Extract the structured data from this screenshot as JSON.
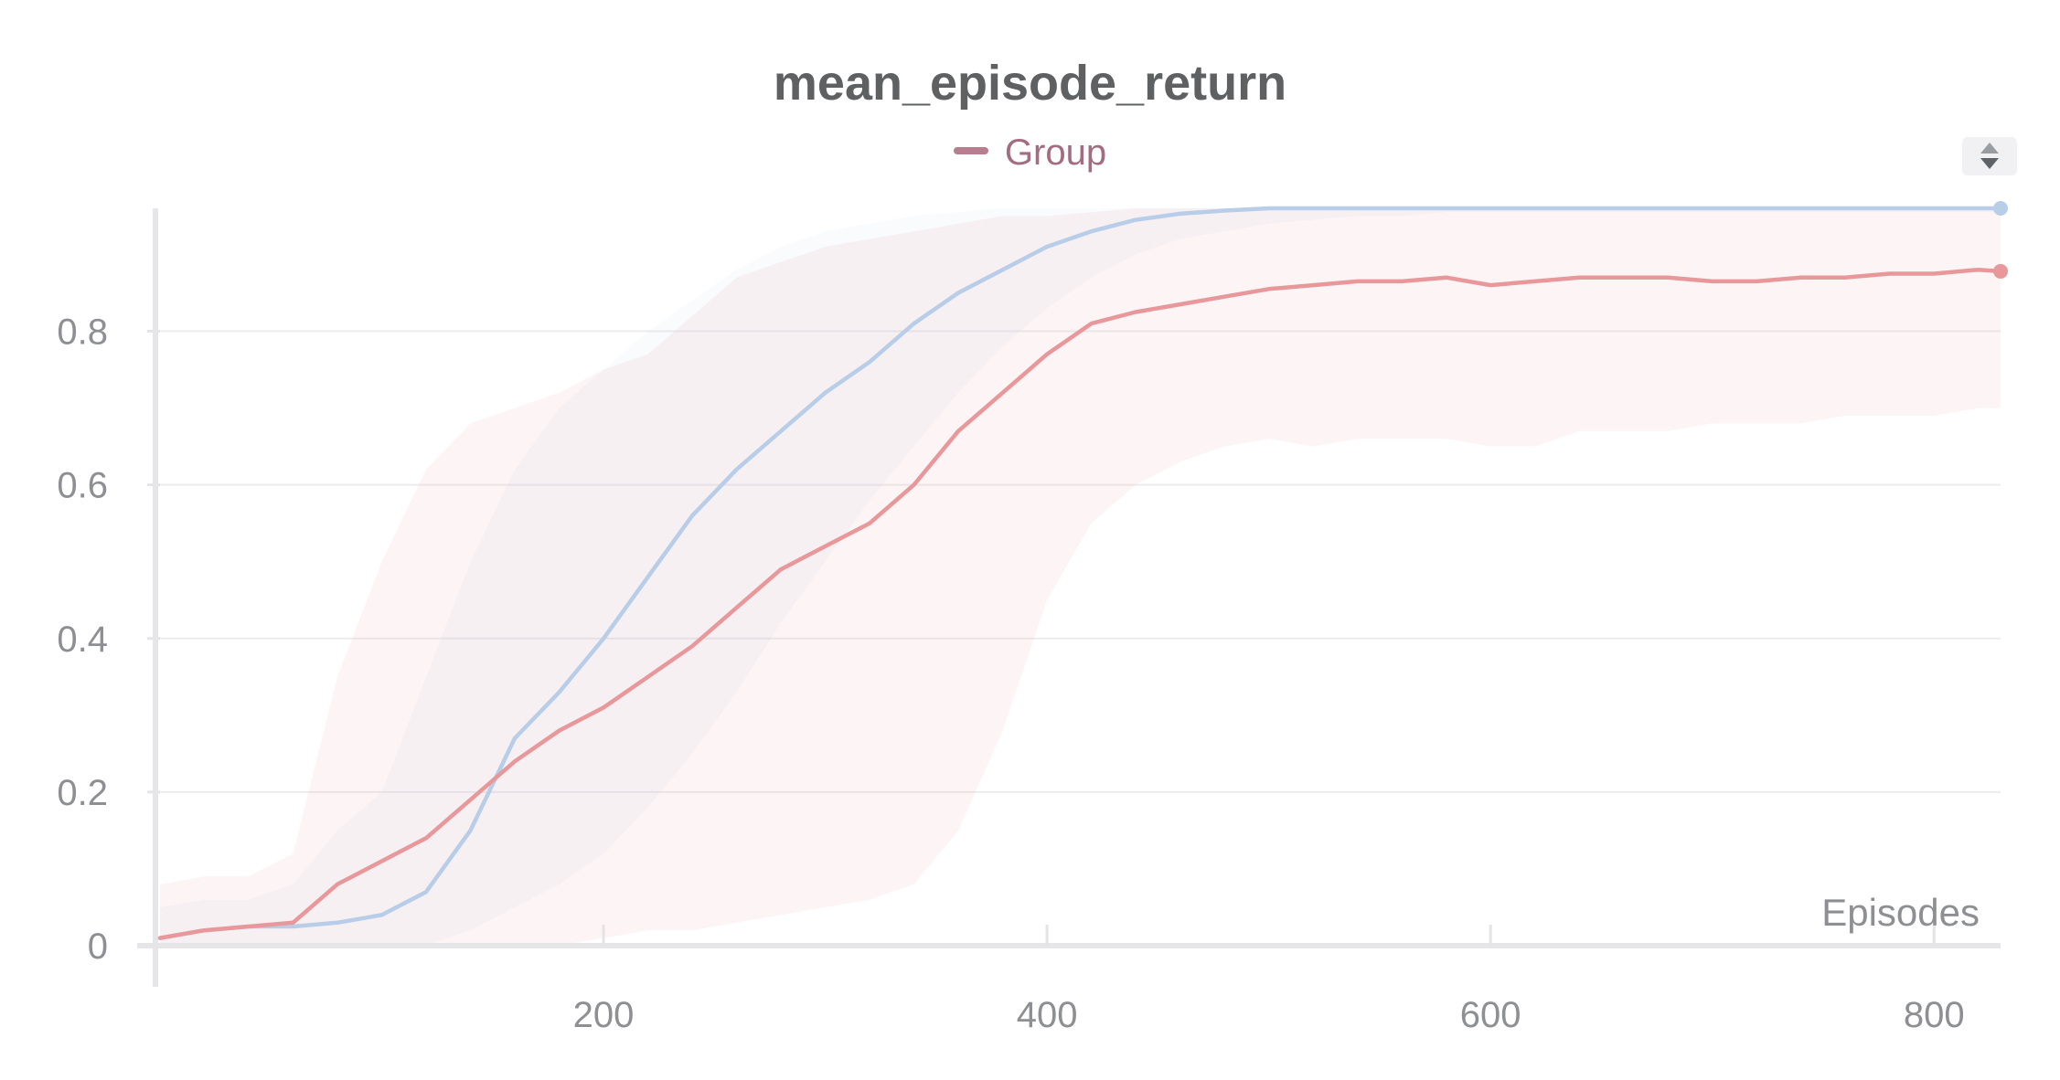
{
  "chart_data": {
    "type": "line",
    "title": "mean_episode_return",
    "xlabel": "Episodes",
    "ylabel": "",
    "xlim": [
      0,
      830
    ],
    "ylim": [
      0,
      0.96
    ],
    "x_ticks": [
      "200",
      "400",
      "600",
      "800"
    ],
    "x_tick_values": [
      200,
      400,
      600,
      800
    ],
    "y_ticks": [
      "0",
      "0.2",
      "0.4",
      "0.6",
      "0.8"
    ],
    "y_tick_values": [
      0,
      0.2,
      0.4,
      0.6,
      0.8
    ],
    "grid": true,
    "legend": {
      "position": "top-center",
      "entries": [
        "Group"
      ]
    },
    "series": [
      {
        "name": "Group",
        "color": "#e8989a",
        "x": [
          0,
          20,
          40,
          60,
          80,
          100,
          120,
          140,
          160,
          180,
          200,
          220,
          240,
          260,
          280,
          300,
          320,
          340,
          360,
          380,
          400,
          420,
          440,
          460,
          480,
          500,
          520,
          540,
          560,
          580,
          600,
          620,
          640,
          660,
          680,
          700,
          720,
          740,
          760,
          780,
          800,
          820,
          830
        ],
        "values": [
          0.01,
          0.02,
          0.025,
          0.03,
          0.08,
          0.11,
          0.14,
          0.19,
          0.24,
          0.28,
          0.31,
          0.35,
          0.39,
          0.44,
          0.49,
          0.52,
          0.55,
          0.6,
          0.67,
          0.72,
          0.77,
          0.81,
          0.825,
          0.835,
          0.845,
          0.855,
          0.86,
          0.865,
          0.865,
          0.87,
          0.86,
          0.865,
          0.87,
          0.87,
          0.87,
          0.865,
          0.865,
          0.87,
          0.87,
          0.875,
          0.875,
          0.88,
          0.878
        ],
        "band_upper": [
          0.08,
          0.09,
          0.09,
          0.12,
          0.35,
          0.5,
          0.62,
          0.68,
          0.7,
          0.72,
          0.75,
          0.77,
          0.82,
          0.87,
          0.89,
          0.91,
          0.92,
          0.93,
          0.94,
          0.95,
          0.95,
          0.955,
          0.96,
          0.96,
          0.96,
          0.96,
          0.96,
          0.96,
          0.96,
          0.96,
          0.96,
          0.96,
          0.96,
          0.96,
          0.96,
          0.96,
          0.96,
          0.96,
          0.96,
          0.96,
          0.96,
          0.96,
          0.96
        ],
        "band_lower": [
          0,
          0,
          0,
          0,
          0,
          0,
          0,
          0,
          0,
          0,
          0.01,
          0.02,
          0.02,
          0.03,
          0.04,
          0.05,
          0.06,
          0.08,
          0.15,
          0.28,
          0.45,
          0.55,
          0.6,
          0.63,
          0.65,
          0.66,
          0.65,
          0.66,
          0.66,
          0.66,
          0.65,
          0.65,
          0.67,
          0.67,
          0.67,
          0.68,
          0.68,
          0.68,
          0.69,
          0.69,
          0.69,
          0.7,
          0.7
        ]
      },
      {
        "name": "",
        "color": "#b8cde8",
        "x": [
          0,
          20,
          40,
          60,
          80,
          100,
          120,
          140,
          160,
          180,
          200,
          220,
          240,
          260,
          280,
          300,
          320,
          340,
          360,
          380,
          400,
          420,
          440,
          460,
          480,
          500,
          520,
          540,
          560,
          580,
          600,
          620,
          640,
          660,
          680,
          700,
          720,
          740,
          760,
          780,
          800,
          820,
          830
        ],
        "values": [
          0.01,
          0.02,
          0.025,
          0.025,
          0.03,
          0.04,
          0.07,
          0.15,
          0.27,
          0.33,
          0.4,
          0.48,
          0.56,
          0.62,
          0.67,
          0.72,
          0.76,
          0.81,
          0.85,
          0.88,
          0.91,
          0.93,
          0.945,
          0.953,
          0.957,
          0.96,
          0.96,
          0.96,
          0.96,
          0.96,
          0.96,
          0.96,
          0.96,
          0.96,
          0.96,
          0.96,
          0.96,
          0.96,
          0.96,
          0.96,
          0.96,
          0.96,
          0.96
        ],
        "band_upper": [
          0.05,
          0.06,
          0.06,
          0.08,
          0.15,
          0.2,
          0.35,
          0.5,
          0.62,
          0.7,
          0.75,
          0.8,
          0.84,
          0.88,
          0.91,
          0.93,
          0.94,
          0.95,
          0.955,
          0.96,
          0.96,
          0.96,
          0.96,
          0.96,
          0.96,
          0.96,
          0.96,
          0.96,
          0.96,
          0.96,
          0.96,
          0.96,
          0.96,
          0.96,
          0.96,
          0.96,
          0.96,
          0.96,
          0.96,
          0.96,
          0.96,
          0.96,
          0.96
        ],
        "band_lower": [
          0,
          0,
          0,
          0,
          0,
          0,
          0,
          0.02,
          0.05,
          0.08,
          0.12,
          0.18,
          0.25,
          0.33,
          0.42,
          0.5,
          0.58,
          0.65,
          0.72,
          0.78,
          0.83,
          0.87,
          0.9,
          0.92,
          0.93,
          0.94,
          0.945,
          0.95,
          0.95,
          0.955,
          0.955,
          0.955,
          0.955,
          0.955,
          0.955,
          0.955,
          0.955,
          0.955,
          0.955,
          0.955,
          0.955,
          0.955,
          0.955
        ]
      }
    ]
  }
}
